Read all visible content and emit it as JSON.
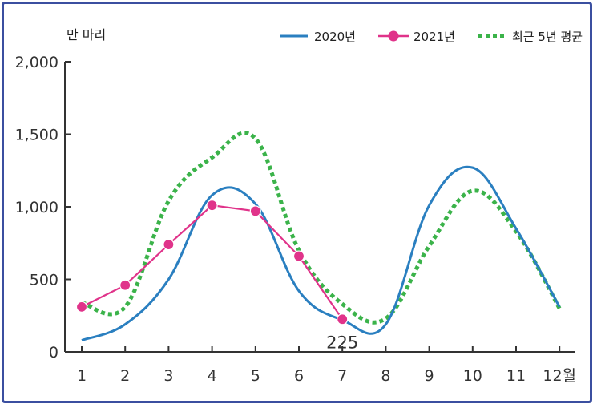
{
  "chart_data": {
    "type": "line",
    "unit_label": "만 마리",
    "categories": [
      "1",
      "2",
      "3",
      "4",
      "5",
      "6",
      "7",
      "8",
      "9",
      "10",
      "11",
      "12월"
    ],
    "ylim": [
      0,
      2000
    ],
    "yticks": [
      0,
      500,
      1000,
      1500,
      2000
    ],
    "ytick_labels": [
      "0",
      "500",
      "1,000",
      "1,500",
      "2,000"
    ],
    "series": [
      {
        "name": "2020년",
        "color": "#2a7fc0",
        "style": "solid",
        "values": [
          80,
          190,
          500,
          1080,
          1020,
          420,
          220,
          190,
          1010,
          1270,
          850,
          310
        ]
      },
      {
        "name": "2021년",
        "color": "#e0338a",
        "style": "solid-markers",
        "values": [
          310,
          460,
          740,
          1010,
          970,
          660,
          225,
          null,
          null,
          null,
          null,
          null
        ]
      },
      {
        "name": "최근 5년 평균",
        "color": "#3bb34a",
        "style": "dotted",
        "values": [
          340,
          310,
          1040,
          1340,
          1470,
          700,
          330,
          230,
          730,
          1110,
          830,
          300
        ]
      }
    ],
    "annotations": [
      {
        "text": "225",
        "category": "7",
        "series": "2021년"
      }
    ],
    "grid": false,
    "legend_position": "top-right"
  }
}
